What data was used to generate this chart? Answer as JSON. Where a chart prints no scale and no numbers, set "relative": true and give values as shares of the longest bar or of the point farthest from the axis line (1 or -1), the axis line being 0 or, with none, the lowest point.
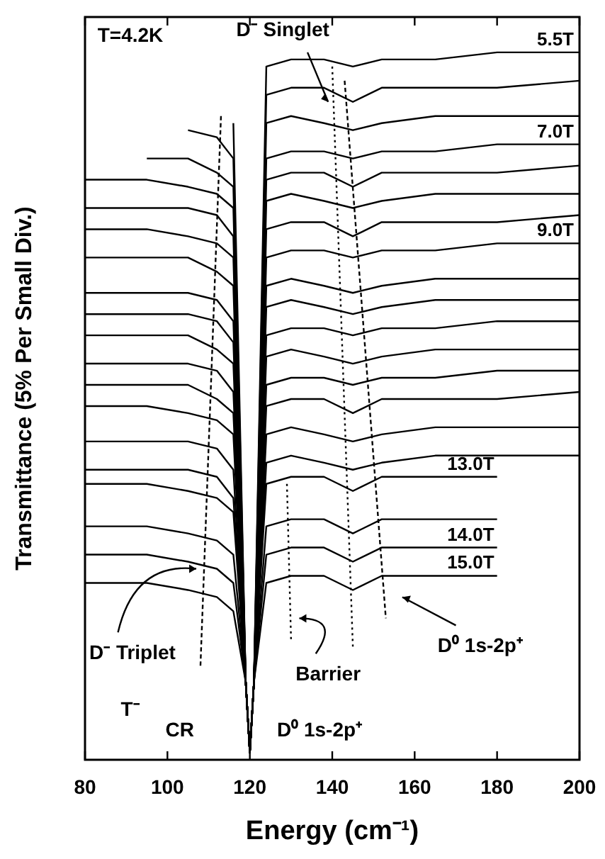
{
  "chart_data": {
    "type": "line",
    "relative": true,
    "xlabel": "Energy (cm⁻¹)",
    "ylabel": "Transmittance (5% Per Small Div.)",
    "xlim": [
      80,
      200
    ],
    "xticks": [
      80,
      100,
      120,
      140,
      160,
      180,
      200
    ],
    "tick_labels": "x",
    "marker": "none",
    "line_style": "solid",
    "x": [
      80,
      95,
      105,
      112,
      116,
      119,
      120,
      121,
      124,
      130,
      138,
      145,
      152,
      165,
      180,
      200
    ],
    "annotations": [
      "T=4.2K",
      "D⁻ Singlet",
      "D⁻ Triplet",
      "T⁻",
      "CR",
      "Barrier",
      "D⁰ 1s-2p⁺",
      "D⁰ 1s-2p⁺"
    ],
    "series": [
      {
        "name": "5.5T",
        "color": "#000000",
        "values": [
          null,
          null,
          null,
          null,
          null,
          null,
          null,
          0.11,
          0.98,
          0.99,
          0.99,
          0.98,
          0.99,
          0.99,
          1.0,
          1.0
        ]
      },
      {
        "color": "#000000",
        "values": [
          null,
          null,
          null,
          null,
          0.9,
          0.11,
          0.01,
          0.11,
          0.94,
          0.95,
          0.95,
          0.93,
          0.95,
          0.95,
          0.95,
          0.96
        ]
      },
      {
        "color": "#000000",
        "values": [
          null,
          null,
          0.89,
          0.88,
          0.85,
          0.11,
          0.01,
          0.11,
          0.9,
          0.91,
          0.9,
          0.89,
          0.9,
          0.91,
          0.91,
          0.91
        ]
      },
      {
        "name": "7.0T",
        "color": "#000000",
        "values": [
          null,
          0.85,
          0.85,
          0.83,
          0.81,
          0.11,
          0.01,
          0.11,
          0.85,
          0.86,
          0.86,
          0.85,
          0.86,
          0.86,
          0.87,
          0.87
        ]
      },
      {
        "color": "#000000",
        "values": [
          0.82,
          0.82,
          0.81,
          0.8,
          0.78,
          0.11,
          0.01,
          0.11,
          0.82,
          0.83,
          0.83,
          0.81,
          0.83,
          0.83,
          0.83,
          0.84
        ]
      },
      {
        "color": "#000000",
        "values": [
          0.78,
          0.78,
          0.78,
          0.77,
          0.74,
          0.11,
          0.01,
          0.11,
          0.79,
          0.8,
          0.79,
          0.78,
          0.79,
          0.8,
          0.8,
          0.8
        ]
      },
      {
        "color": "#000000",
        "values": [
          0.75,
          0.75,
          0.74,
          0.73,
          0.71,
          0.11,
          0.01,
          0.11,
          0.75,
          0.76,
          0.76,
          0.74,
          0.76,
          0.76,
          0.76,
          0.77
        ]
      },
      {
        "name": "9.0T",
        "color": "#000000",
        "values": [
          0.71,
          0.71,
          0.71,
          0.69,
          0.67,
          0.11,
          0.01,
          0.11,
          0.71,
          0.72,
          0.72,
          0.71,
          0.72,
          0.72,
          0.73,
          0.73
        ]
      },
      {
        "color": "#000000",
        "values": [
          0.66,
          0.66,
          0.66,
          0.65,
          0.62,
          0.11,
          0.01,
          0.11,
          0.67,
          0.68,
          0.67,
          0.66,
          0.67,
          0.68,
          0.68,
          0.68
        ]
      },
      {
        "color": "#000000",
        "values": [
          0.63,
          0.63,
          0.63,
          0.62,
          0.59,
          0.11,
          0.01,
          0.11,
          0.64,
          0.65,
          0.64,
          0.63,
          0.64,
          0.65,
          0.65,
          0.65
        ]
      },
      {
        "color": "#000000",
        "values": [
          0.6,
          0.6,
          0.6,
          0.58,
          0.56,
          0.11,
          0.01,
          0.11,
          0.6,
          0.61,
          0.61,
          0.6,
          0.61,
          0.61,
          0.62,
          0.62
        ]
      },
      {
        "color": "#000000",
        "values": [
          0.56,
          0.56,
          0.56,
          0.55,
          0.52,
          0.11,
          0.01,
          0.11,
          0.57,
          0.58,
          0.57,
          0.56,
          0.57,
          0.58,
          0.58,
          0.58
        ]
      },
      {
        "color": "#000000",
        "values": [
          0.53,
          0.53,
          0.53,
          0.51,
          0.49,
          0.11,
          0.01,
          0.11,
          0.53,
          0.54,
          0.54,
          0.53,
          0.54,
          0.54,
          0.55,
          0.55
        ]
      },
      {
        "color": "#000000",
        "values": [
          0.5,
          0.5,
          0.49,
          0.48,
          0.46,
          0.11,
          0.01,
          0.11,
          0.5,
          0.51,
          0.51,
          0.49,
          0.51,
          0.51,
          0.51,
          0.52
        ]
      },
      {
        "color": "#000000",
        "values": [
          0.45,
          0.45,
          0.45,
          0.44,
          0.41,
          0.11,
          0.01,
          0.11,
          0.46,
          0.47,
          0.46,
          0.45,
          0.46,
          0.47,
          0.47,
          0.47
        ]
      },
      {
        "color": "#000000",
        "values": [
          0.41,
          0.41,
          0.41,
          0.4,
          0.37,
          0.11,
          0.01,
          0.11,
          0.42,
          0.43,
          0.42,
          0.41,
          0.42,
          0.43,
          0.43,
          0.43
        ]
      },
      {
        "name": "13.0T",
        "color": "#000000",
        "values": [
          0.39,
          0.39,
          0.38,
          0.37,
          0.35,
          0.11,
          0.01,
          0.11,
          0.39,
          0.4,
          0.4,
          0.38,
          0.4,
          0.4,
          0.4,
          null
        ]
      },
      {
        "color": "#000000",
        "values": [
          0.33,
          0.33,
          0.32,
          0.31,
          0.29,
          0.11,
          0.01,
          0.11,
          0.33,
          0.34,
          0.34,
          0.32,
          0.34,
          0.34,
          0.34,
          null
        ]
      },
      {
        "name": "14.0T",
        "color": "#000000",
        "values": [
          0.29,
          0.29,
          0.28,
          0.27,
          0.25,
          0.11,
          0.01,
          0.11,
          0.29,
          0.3,
          0.3,
          0.28,
          0.3,
          0.3,
          0.3,
          null
        ]
      },
      {
        "name": "15.0T",
        "color": "#000000",
        "values": [
          0.25,
          0.25,
          0.24,
          0.23,
          0.21,
          0.11,
          0.01,
          0.11,
          0.25,
          0.26,
          0.26,
          0.24,
          0.26,
          0.26,
          0.26,
          null
        ]
      },
      {
        "color": "#000000",
        "line_style": "dashed",
        "x": [
          113,
          108
        ],
        "values": [
          0.91,
          0.13
        ]
      },
      {
        "color": "#000000",
        "line_style": "dotted",
        "x": [
          140,
          145
        ],
        "values": [
          0.98,
          0.16
        ]
      },
      {
        "color": "#000000",
        "line_style": "dashed",
        "x": [
          143,
          153
        ],
        "values": [
          0.96,
          0.2
        ]
      },
      {
        "color": "#000000",
        "line_style": "dotted",
        "x": [
          129,
          130
        ],
        "values": [
          0.39,
          0.17
        ]
      }
    ]
  }
}
